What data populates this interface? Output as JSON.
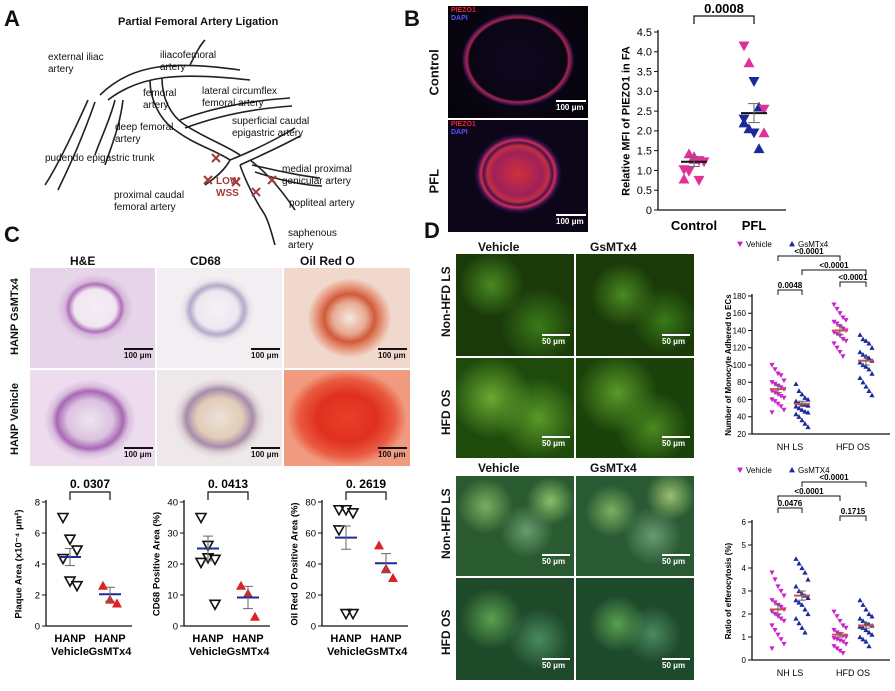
{
  "panelA": {
    "letter": "A",
    "title": "Partial Femoral Artery Ligation",
    "labels": {
      "external_iliac": "external iliac artery",
      "iliacofemoral": "iliacofemoral artery",
      "lateral_circumflex": "lateral circumflex femoral artery",
      "femoral": "femoral artery",
      "superficial_caudal": "superficial caudal epigastric artery",
      "deep_femoral": "deep femoral artery",
      "pudendo": "pudendo epigastric trunk",
      "medial_proximal": "medial proximal genicular artery",
      "proximal_caudal": "proximal caudal femoral artery",
      "popliteal": "popliteal artery",
      "saphenous": "saphenous artery",
      "low_wss": "LOW WSS"
    },
    "colors": {
      "vessel": "#222222",
      "ligation": "#a33b3b"
    }
  },
  "panelB": {
    "letter": "B",
    "rows": [
      "Control",
      "PFL"
    ],
    "stain_labels": [
      "PIEZO1",
      "DAPI"
    ],
    "scale_bar": "100 μm",
    "chart_data": {
      "type": "scatter",
      "ylabel": "Relative MFI of PIEZO1 in FA",
      "categories": [
        "Control",
        "PFL"
      ],
      "ylim": [
        0,
        4.5
      ],
      "yticks": [
        "0",
        "0.5",
        "1.0",
        "1.5",
        "2.0",
        "2.5",
        "3.0",
        "3.5",
        "4.0",
        "4.5"
      ],
      "pvalue": "0.0008",
      "series": [
        {
          "name": "Control",
          "mean": 1.22,
          "sem": 0.12,
          "points": [
            {
              "v": 1.02,
              "s": "down",
              "c": "#e0309a"
            },
            {
              "v": 1.42,
              "s": "up",
              "c": "#e0309a"
            },
            {
              "v": 1.28,
              "s": "up",
              "c": "#e0309a"
            },
            {
              "v": 1.25,
              "s": "down",
              "c": "#e0309a"
            },
            {
              "v": 1.22,
              "s": "down",
              "c": "#e0309a"
            },
            {
              "v": 0.78,
              "s": "up",
              "c": "#e0309a"
            },
            {
              "v": 0.98,
              "s": "down",
              "c": "#e0309a"
            },
            {
              "v": 1.35,
              "s": "up",
              "c": "#e0309a"
            },
            {
              "v": 0.75,
              "s": "down",
              "c": "#e0309a"
            }
          ]
        },
        {
          "name": "PFL",
          "mean": 2.45,
          "sem": 0.24,
          "points": [
            {
              "v": 4.15,
              "s": "down",
              "c": "#e0309a"
            },
            {
              "v": 3.72,
              "s": "up",
              "c": "#e0309a"
            },
            {
              "v": 3.25,
              "s": "down",
              "c": "#1a2a9a"
            },
            {
              "v": 2.6,
              "s": "up",
              "c": "#1a2a9a"
            },
            {
              "v": 2.55,
              "s": "down",
              "c": "#e0309a"
            },
            {
              "v": 2.3,
              "s": "down",
              "c": "#1a2a9a"
            },
            {
              "v": 2.05,
              "s": "up",
              "c": "#1a2a9a"
            },
            {
              "v": 1.95,
              "s": "down",
              "c": "#1a2a9a"
            },
            {
              "v": 1.55,
              "s": "up",
              "c": "#1a2a9a"
            },
            {
              "v": 1.95,
              "s": "up",
              "c": "#e0309a"
            },
            {
              "v": 2.2,
              "s": "up",
              "c": "#1a2a9a"
            }
          ]
        }
      ]
    }
  },
  "panelC": {
    "letter": "C",
    "columns": [
      "H&E",
      "CD68",
      "Oil Red O"
    ],
    "rows": [
      "HANP GsMTx4",
      "HANP Vehicle"
    ],
    "scale_bar": "100 μm",
    "chart_data": [
      {
        "type": "scatter",
        "ylabel": "Plaque Area (x10⁻⁴ μm²)",
        "ylim": [
          0,
          8
        ],
        "yticks": [
          "0",
          "2",
          "4",
          "6",
          "8"
        ],
        "categories": [
          "HANP Vehicle",
          "HANP GsMTx4"
        ],
        "pvalue": "0. 0307",
        "series": [
          {
            "name": "HANP Vehicle",
            "mean": 4.45,
            "sem": 0.55,
            "marker": "down",
            "color": "#111111",
            "points": [
              7.0,
              5.6,
              4.9,
              4.35,
              2.9,
              2.6
            ]
          },
          {
            "name": "HANP GsMTx4",
            "mean": 2.05,
            "sem": 0.45,
            "marker": "up",
            "color": "#dd2222",
            "points": [
              2.6,
              1.7,
              1.45
            ]
          }
        ]
      },
      {
        "type": "scatter",
        "ylabel": "CD68 Positive Area (%)",
        "ylim": [
          0,
          40
        ],
        "yticks": [
          "0",
          "10",
          "20",
          "30",
          "40"
        ],
        "categories": [
          "HANP Vehicle",
          "HANP GsMTx4"
        ],
        "pvalue": "0. 0413",
        "series": [
          {
            "name": "HANP Vehicle",
            "mean": 25,
            "sem": 4,
            "marker": "down",
            "color": "#111111",
            "points": [
              35,
              26,
              21.5,
              20.5,
              22,
              7
            ]
          },
          {
            "name": "HANP GsMTx4",
            "mean": 9.2,
            "sem": 3.6,
            "marker": "up",
            "color": "#dd2222",
            "points": [
              13,
              10.5,
              3
            ]
          }
        ]
      },
      {
        "type": "scatter",
        "ylabel": "Oil Red O Positive Area (%)",
        "ylim": [
          0,
          80
        ],
        "yticks": [
          "0",
          "20",
          "40",
          "60",
          "80"
        ],
        "categories": [
          "HANP Vehicle",
          "HANP GsMTx4"
        ],
        "pvalue": "0. 2619",
        "series": [
          {
            "name": "HANP Vehicle",
            "mean": 57,
            "sem": 7.5,
            "marker": "down",
            "color": "#111111",
            "points": [
              75,
              75,
              73,
              62,
              8,
              8
            ]
          },
          {
            "name": "HANP GsMTx4",
            "mean": 40.5,
            "sem": 6.2,
            "marker": "up",
            "color": "#dd2222",
            "points": [
              52,
              37,
              31
            ]
          }
        ]
      }
    ]
  },
  "panelD": {
    "letter": "D",
    "columns": [
      "Vehicle",
      "GsMTx4"
    ],
    "rows_top": [
      "Non-HFD LS",
      "HFD OS"
    ],
    "rows_bottom": [
      "Non-HFD LS",
      "HFD OS"
    ],
    "scale_bar": "50 μm",
    "chart_data": [
      {
        "type": "scatter",
        "ylabel": "Number of Monocyte Adhered to ECs",
        "ylim": [
          20,
          180
        ],
        "yticks": [
          "20",
          "40",
          "60",
          "80",
          "100",
          "120",
          "140",
          "160",
          "180"
        ],
        "categories": [
          "NH LS",
          "HFD OS"
        ],
        "legend": [
          {
            "label": "Vehicle",
            "marker": "down",
            "color": "#cc22cc"
          },
          {
            "label": "GsMTx4",
            "marker": "up",
            "color": "#1a2a9a"
          }
        ],
        "comparisons": [
          {
            "label": "<0.0001",
            "from": 0,
            "to": 2
          },
          {
            "label": "<0.0001",
            "from": 1,
            "to": 3
          },
          {
            "label": "<0.0001",
            "from": 2,
            "to": 3
          },
          {
            "label": "0.0048",
            "from": 0,
            "to": 1
          }
        ],
        "groups": [
          {
            "name": "NH LS Vehicle",
            "mean": 72,
            "sem": 4,
            "marker": "down",
            "color": "#cc22cc",
            "points": [
              100,
              95,
              90,
              88,
              82,
              80,
              78,
              76,
              74,
              72,
              70,
              68,
              66,
              64,
              62,
              60,
              58,
              55,
              52,
              48,
              45
            ]
          },
          {
            "name": "NH LS GsMTx4",
            "mean": 55,
            "sem": 3,
            "marker": "up",
            "color": "#1a2a9a",
            "points": [
              78,
              70,
              66,
              62,
              60,
              58,
              56,
              55,
              54,
              53,
              52,
              50,
              48,
              46,
              45,
              43,
              40,
              36,
              32,
              28
            ]
          },
          {
            "name": "HFD OS Vehicle",
            "mean": 140,
            "sem": 5,
            "marker": "down",
            "color": "#cc22cc",
            "points": [
              170,
              165,
              160,
              155,
              152,
              150,
              148,
              145,
              142,
              140,
              138,
              136,
              134,
              130,
              128,
              125,
              120,
              115,
              110
            ]
          },
          {
            "name": "HFD OS GsMTx4",
            "mean": 105,
            "sem": 5,
            "marker": "up",
            "color": "#1a2a9a",
            "points": [
              135,
              130,
              128,
              125,
              120,
              115,
              112,
              110,
              108,
              105,
              103,
              100,
              98,
              95,
              90,
              85,
              80,
              75,
              70,
              65
            ]
          }
        ]
      },
      {
        "type": "scatter",
        "ylabel": "Ratio of efferocytosis (%)",
        "ylim": [
          0,
          6
        ],
        "yticks": [
          "0",
          "1",
          "2",
          "3",
          "4",
          "5",
          "6"
        ],
        "categories": [
          "NH LS",
          "HFD OS"
        ],
        "legend": [
          {
            "label": "Vehicle",
            "marker": "down",
            "color": "#cc22cc"
          },
          {
            "label": "GsMTX4",
            "marker": "up",
            "color": "#1a2a9a"
          }
        ],
        "comparisons": [
          {
            "label": "<0.0001",
            "from": 1,
            "to": 3
          },
          {
            "label": "<0.0001",
            "from": 0,
            "to": 2
          },
          {
            "label": "0.0476",
            "from": 0,
            "to": 1
          },
          {
            "label": "0.1715",
            "from": 2,
            "to": 3
          }
        ],
        "groups": [
          {
            "name": "NH LS Vehicle",
            "mean": 2.2,
            "sem": 0.2,
            "marker": "down",
            "color": "#cc22cc",
            "points": [
              3.8,
              3.5,
              3.2,
              3.0,
              2.8,
              2.6,
              2.5,
              2.4,
              2.3,
              2.2,
              2.1,
              2.0,
              1.9,
              1.8,
              1.7,
              1.5,
              1.3,
              1.1,
              0.9,
              0.7,
              0.5
            ]
          },
          {
            "name": "NH LS GsMTx4",
            "mean": 2.8,
            "sem": 0.2,
            "marker": "up",
            "color": "#1a2a9a",
            "points": [
              4.4,
              4.2,
              4.0,
              3.8,
              3.5,
              3.2,
              3.0,
              2.9,
              2.8,
              2.7,
              2.6,
              2.5,
              2.4,
              2.2,
              2.0,
              1.8,
              1.6,
              1.4,
              1.2
            ]
          },
          {
            "name": "HFD OS Vehicle",
            "mean": 1.1,
            "sem": 0.1,
            "marker": "down",
            "color": "#cc22cc",
            "points": [
              2.1,
              1.9,
              1.7,
              1.5,
              1.4,
              1.3,
              1.2,
              1.1,
              1.05,
              1.0,
              0.95,
              0.9,
              0.85,
              0.8,
              0.7,
              0.6,
              0.5,
              0.4,
              0.3
            ]
          },
          {
            "name": "HFD OS GsMTx4",
            "mean": 1.5,
            "sem": 0.12,
            "marker": "up",
            "color": "#1a2a9a",
            "points": [
              2.6,
              2.4,
              2.2,
              2.0,
              1.9,
              1.8,
              1.7,
              1.6,
              1.55,
              1.5,
              1.45,
              1.4,
              1.3,
              1.2,
              1.1,
              1.0,
              0.9,
              0.8,
              0.6
            ]
          }
        ]
      }
    ]
  }
}
